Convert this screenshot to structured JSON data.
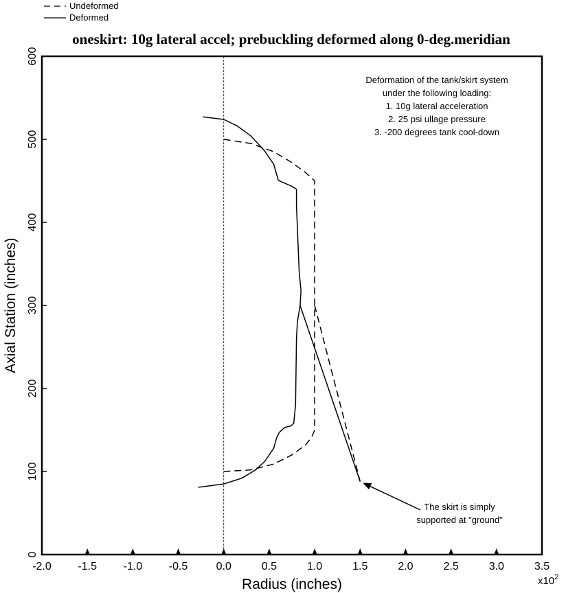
{
  "chart_data": {
    "type": "line",
    "title": "oneskirt: 10g lateral accel; prebuckling deformed along 0-deg.meridian",
    "xlabel": "Radius (inches)",
    "ylabel": "Axial Station (inches)",
    "x_multiplier": "x10",
    "x_multiplier_exp": "2",
    "xlim": [
      -2.0,
      3.5
    ],
    "ylim": [
      0,
      600
    ],
    "xticks": [
      "-2.0",
      "-1.5",
      "-1.0",
      "-0.5",
      "0.0",
      "0.5",
      "1.0",
      "1.5",
      "2.0",
      "2.5",
      "3.0",
      "3.5"
    ],
    "yticks": [
      "0",
      "100",
      "200",
      "300",
      "400",
      "500",
      "600"
    ],
    "support_markers_x": [
      -1.5,
      -1.0,
      -0.5,
      0.0,
      0.5,
      1.0,
      1.5,
      2.0,
      2.5,
      3.0
    ],
    "grid": false,
    "legend_position": "top-left",
    "series": [
      {
        "name": "Undeformed",
        "style": "dashed",
        "paths": [
          [
            [
              0.0,
              500
            ],
            [
              0.3,
              495
            ],
            [
              0.55,
              485
            ],
            [
              0.75,
              472
            ],
            [
              0.9,
              460
            ],
            [
              0.97,
              453
            ],
            [
              1.0,
              450
            ],
            [
              1.0,
              300
            ],
            [
              1.0,
              150
            ],
            [
              0.97,
              142
            ],
            [
              0.9,
              132
            ],
            [
              0.75,
              120
            ],
            [
              0.55,
              109
            ],
            [
              0.3,
              102
            ],
            [
              0.0,
              100
            ]
          ],
          [
            [
              1.0,
              300
            ],
            [
              1.5,
              88
            ]
          ]
        ]
      },
      {
        "name": "Deformed",
        "style": "solid",
        "paths": [
          [
            [
              -0.23,
              527
            ],
            [
              0.0,
              524
            ],
            [
              0.15,
              516
            ],
            [
              0.3,
              504
            ],
            [
              0.45,
              486
            ],
            [
              0.55,
              470
            ],
            [
              0.57,
              462
            ],
            [
              0.6,
              451
            ],
            [
              0.63,
              449
            ],
            [
              0.74,
              444
            ],
            [
              0.8,
              440
            ],
            [
              0.8,
              420
            ],
            [
              0.83,
              340
            ],
            [
              0.85,
              318
            ],
            [
              0.84,
              300
            ],
            [
              0.81,
              280
            ],
            [
              0.8,
              260
            ],
            [
              0.79,
              180
            ],
            [
              0.77,
              158
            ],
            [
              0.74,
              155
            ],
            [
              0.67,
              153
            ],
            [
              0.61,
              147
            ],
            [
              0.58,
              140
            ],
            [
              0.55,
              128
            ],
            [
              0.45,
              112
            ],
            [
              0.35,
              102
            ],
            [
              0.2,
              92
            ],
            [
              0.0,
              85
            ],
            [
              -0.28,
              81
            ]
          ],
          [
            [
              0.84,
              300
            ],
            [
              1.5,
              88
            ]
          ]
        ]
      }
    ],
    "annotations": {
      "loading_note": [
        "Deformation of the tank/skirt system",
        "under the following loading:",
        "1. 10g lateral acceleration",
        "2.  25 psi ullage pressure",
        "3. -200 degrees tank cool-down"
      ],
      "support_note": [
        "The skirt is simply",
        "supported at \"ground\""
      ],
      "support_point": [
        1.5,
        88
      ]
    }
  }
}
